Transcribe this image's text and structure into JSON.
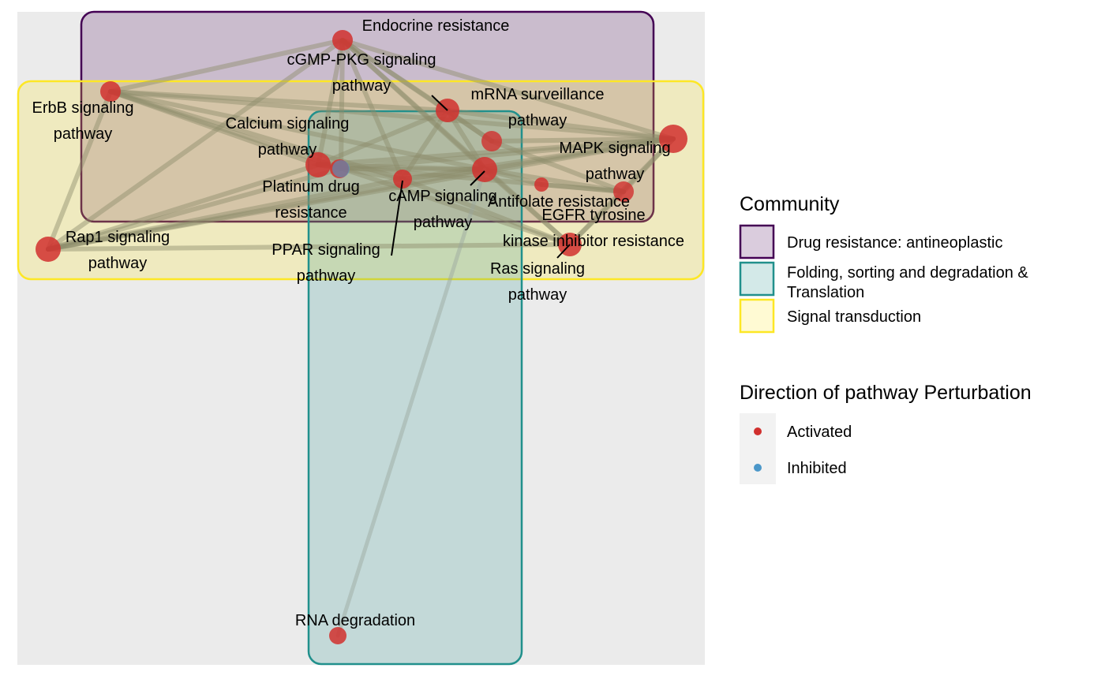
{
  "colors": {
    "panel_bg": "#ebebeb",
    "edge": "#8b8b6a",
    "activated": "#d1302e",
    "inhibited": "#4b97c9"
  },
  "communities": [
    {
      "id": "drug",
      "name": "Drug resistance: antineoplastic",
      "stroke": "#440154",
      "fill": "#440154"
    },
    {
      "id": "fold",
      "name": "Folding, sorting and degradation &",
      "name_line2": "Translation",
      "stroke": "#21908c",
      "fill": "#21908c"
    },
    {
      "id": "signal",
      "name": "Signal transduction",
      "stroke": "#fde725",
      "fill": "#fde725"
    }
  ],
  "nodes": [
    {
      "id": "endocrine",
      "label": [
        "Endocrine resistance"
      ],
      "direction": "Activated"
    },
    {
      "id": "cgmp",
      "label": [
        "cGMP-PKG signaling",
        "pathway"
      ],
      "direction": "Activated"
    },
    {
      "id": "erbb",
      "label": [
        "ErbB signaling",
        "pathway"
      ],
      "direction": "Activated"
    },
    {
      "id": "mrna",
      "label": [
        "mRNA surveillance",
        "pathway"
      ],
      "direction": "Activated"
    },
    {
      "id": "calcium",
      "label": [
        "Calcium signaling",
        "pathway"
      ],
      "direction": "Activated"
    },
    {
      "id": "mapk",
      "label": [
        "MAPK signaling",
        "pathway"
      ],
      "direction": "Activated"
    },
    {
      "id": "platinum",
      "label": [
        "Platinum drug",
        "resistance"
      ],
      "direction": "Inhibited"
    },
    {
      "id": "camp",
      "label": [
        "cAMP signaling",
        "pathway"
      ],
      "direction": "Activated"
    },
    {
      "id": "antifolate",
      "label": [
        "Antifolate resistance"
      ],
      "direction": "Activated"
    },
    {
      "id": "egfr",
      "label": [
        "EGFR tyrosine",
        "kinase inhibitor resistance"
      ],
      "direction": "Activated"
    },
    {
      "id": "rap1",
      "label": [
        "Rap1 signaling",
        "pathway"
      ],
      "direction": "Activated"
    },
    {
      "id": "ppar",
      "label": [
        "PPAR signaling",
        "pathway"
      ],
      "direction": "Inhibited"
    },
    {
      "id": "ras",
      "label": [
        "Ras signaling",
        "pathway"
      ],
      "direction": "Activated"
    },
    {
      "id": "rnadeg",
      "label": [
        "RNA degradation"
      ],
      "direction": "Activated"
    }
  ],
  "legend": {
    "community_title": "Community",
    "direction_title": "Direction of pathway Perturbation",
    "direction_items": [
      {
        "label": "Activated",
        "color": "#d1302e"
      },
      {
        "label": "Inhibited",
        "color": "#4b97c9"
      }
    ]
  }
}
